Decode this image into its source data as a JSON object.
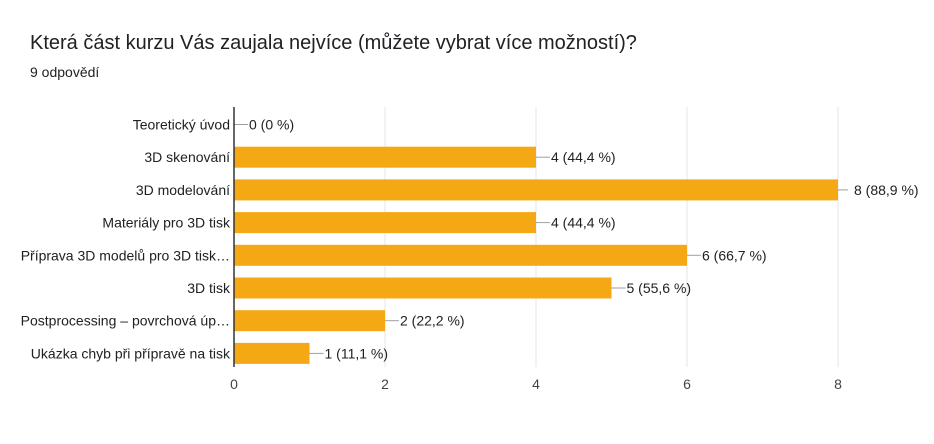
{
  "title": "Která část kurzu Vás zaujala nejvíce (můžete vybrat více možností)?",
  "response_count": "9 odpovědí",
  "colors": {
    "bar": "#F4A914",
    "grid": "#e6e6e6",
    "axis": "#333333"
  },
  "chart_data": {
    "type": "bar",
    "orientation": "horizontal",
    "categories": [
      "Teoretický úvod",
      "3D skenování",
      "3D modelování",
      "Materiály pro 3D tisk",
      "Příprava 3D modelů pro 3D tisk…",
      "3D tisk",
      "Postprocessing – povrchová úp…",
      "Ukázka chyb při přípravě na tisk"
    ],
    "values": [
      0,
      4,
      8,
      4,
      6,
      5,
      2,
      1
    ],
    "data_labels": [
      "0 (0 %)",
      "4 (44,4 %)",
      "8 (88,9 %)",
      "4 (44,4 %)",
      "6 (66,7 %)",
      "5 (55,6 %)",
      "2 (22,2 %)",
      "1 (11,1 %)"
    ],
    "xlim": [
      0,
      8
    ],
    "xticks": [
      "0",
      "2",
      "4",
      "6",
      "8"
    ],
    "grid": true,
    "legend": "none"
  }
}
